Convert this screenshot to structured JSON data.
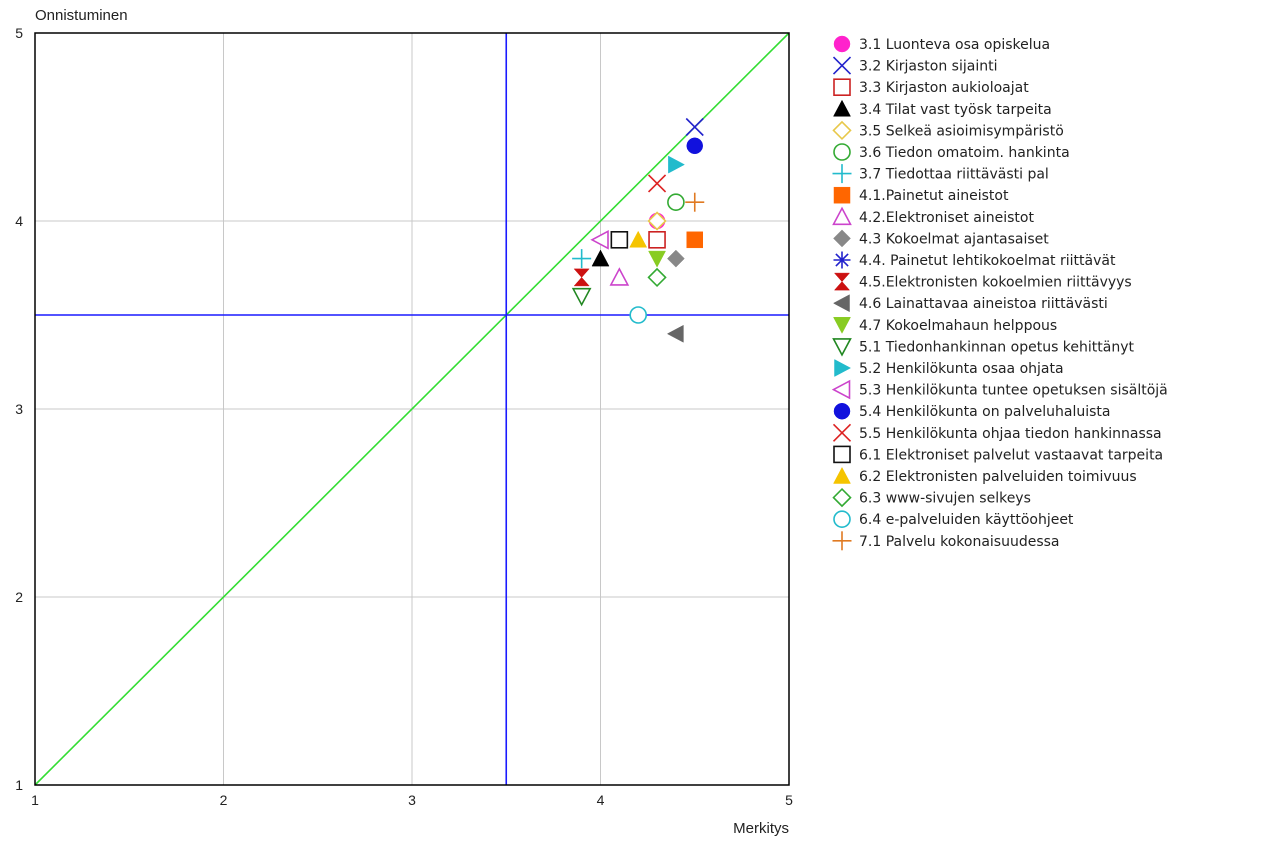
{
  "chart_data": {
    "type": "scatter",
    "title": "",
    "xlabel": "Merkitys",
    "ylabel": "Onnistuminen",
    "xlim": [
      1,
      5
    ],
    "ylim": [
      1,
      5
    ],
    "xticks": [
      "1",
      "2",
      "3",
      "4",
      "5"
    ],
    "yticks": [
      "1",
      "2",
      "3",
      "4",
      "5"
    ],
    "grid": true,
    "legend_position": "right",
    "reference_lines": {
      "vertical_x": 3.5,
      "horizontal_y": 3.5,
      "diagonal": "y=x",
      "quadrant_color": "#1a1aff",
      "diagonal_color": "#33dd33"
    },
    "series": [
      {
        "name": "3.1 Luonteva osa opiskelua",
        "marker": "circle-filled",
        "color": "#ff22cc",
        "x": 4.3,
        "y": 4.0
      },
      {
        "name": "3.2 Kirjaston sijainti",
        "marker": "x",
        "color": "#2222cc",
        "x": 4.5,
        "y": 4.5
      },
      {
        "name": "3.3 Kirjaston aukioloajat",
        "marker": "square-open",
        "color": "#cc2222",
        "x": 4.3,
        "y": 3.9
      },
      {
        "name": "3.4 Tilat vast työsk tarpeita",
        "marker": "triangle-filled",
        "color": "#000000",
        "x": 4.0,
        "y": 3.8
      },
      {
        "name": "3.5 Selkeä asioimisympäristö",
        "marker": "diamond-open",
        "color": "#e8c84a",
        "x": 4.3,
        "y": 4.0
      },
      {
        "name": "3.6 Tiedon omatoim. hankinta",
        "marker": "circle-open",
        "color": "#33aa33",
        "x": 4.4,
        "y": 4.1
      },
      {
        "name": "3.7 Tiedottaa riittävästi pal",
        "marker": "plus",
        "color": "#22bbcc",
        "x": 3.9,
        "y": 3.8
      },
      {
        "name": "4.1.Painetut aineistot",
        "marker": "square-filled",
        "color": "#ff6600",
        "x": 4.5,
        "y": 3.9
      },
      {
        "name": "4.2.Elektroniset aineistot",
        "marker": "triangle-open",
        "color": "#cc44cc",
        "x": 4.1,
        "y": 3.7
      },
      {
        "name": "4.3 Kokoelmat ajantasaiset",
        "marker": "diamond-filled",
        "color": "#888888",
        "x": 4.4,
        "y": 3.8
      },
      {
        "name": "4.4. Painetut lehtikokoelmat riittävät",
        "marker": "asterisk",
        "color": "#2222cc",
        "x": 4.1,
        "y": 3.9
      },
      {
        "name": "4.5.Elektronisten kokoelmien riittävyys",
        "marker": "hourglass-filled",
        "color": "#cc1111",
        "x": 3.9,
        "y": 3.7
      },
      {
        "name": "4.6 Lainattavaa aineistoa riittävästi",
        "marker": "triangle-left-filled",
        "color": "#666666",
        "x": 4.4,
        "y": 3.4
      },
      {
        "name": "4.7 Kokoelmahaun helppous",
        "marker": "triangle-down-filled",
        "color": "#88cc22",
        "x": 4.3,
        "y": 3.8
      },
      {
        "name": "5.1 Tiedonhankinnan opetus kehittänyt",
        "marker": "triangle-down-open",
        "color": "#228822",
        "x": 3.9,
        "y": 3.6
      },
      {
        "name": "5.2 Henkilökunta osaa ohjata",
        "marker": "triangle-right-filled",
        "color": "#22bbcc",
        "x": 4.4,
        "y": 4.3
      },
      {
        "name": "5.3 Henkilökunta tuntee opetuksen sisältöjä",
        "marker": "triangle-left-open",
        "color": "#cc44cc",
        "x": 4.0,
        "y": 3.9
      },
      {
        "name": "5.4 Henkilökunta on palveluhaluista",
        "marker": "circle-filled",
        "color": "#1111dd",
        "x": 4.5,
        "y": 4.4
      },
      {
        "name": "5.5 Henkilökunta ohjaa tiedon hankinnassa",
        "marker": "x",
        "color": "#dd2222",
        "x": 4.3,
        "y": 4.2
      },
      {
        "name": "6.1 Elektroniset palvelut vastaavat tarpeita",
        "marker": "square-open",
        "color": "#111111",
        "x": 4.1,
        "y": 3.9
      },
      {
        "name": "6.2 Elektronisten palveluiden toimivuus",
        "marker": "triangle-filled",
        "color": "#f5c400",
        "x": 4.2,
        "y": 3.9
      },
      {
        "name": "6.3 www-sivujen selkeys",
        "marker": "diamond-open",
        "color": "#33aa33",
        "x": 4.3,
        "y": 3.7
      },
      {
        "name": "6.4 e-palveluiden käyttöohjeet",
        "marker": "circle-open",
        "color": "#22bbcc",
        "x": 4.2,
        "y": 3.5
      },
      {
        "name": "7.1 Palvelu kokonaisuudessa",
        "marker": "plus",
        "color": "#e07a22",
        "x": 4.5,
        "y": 4.1
      }
    ]
  }
}
